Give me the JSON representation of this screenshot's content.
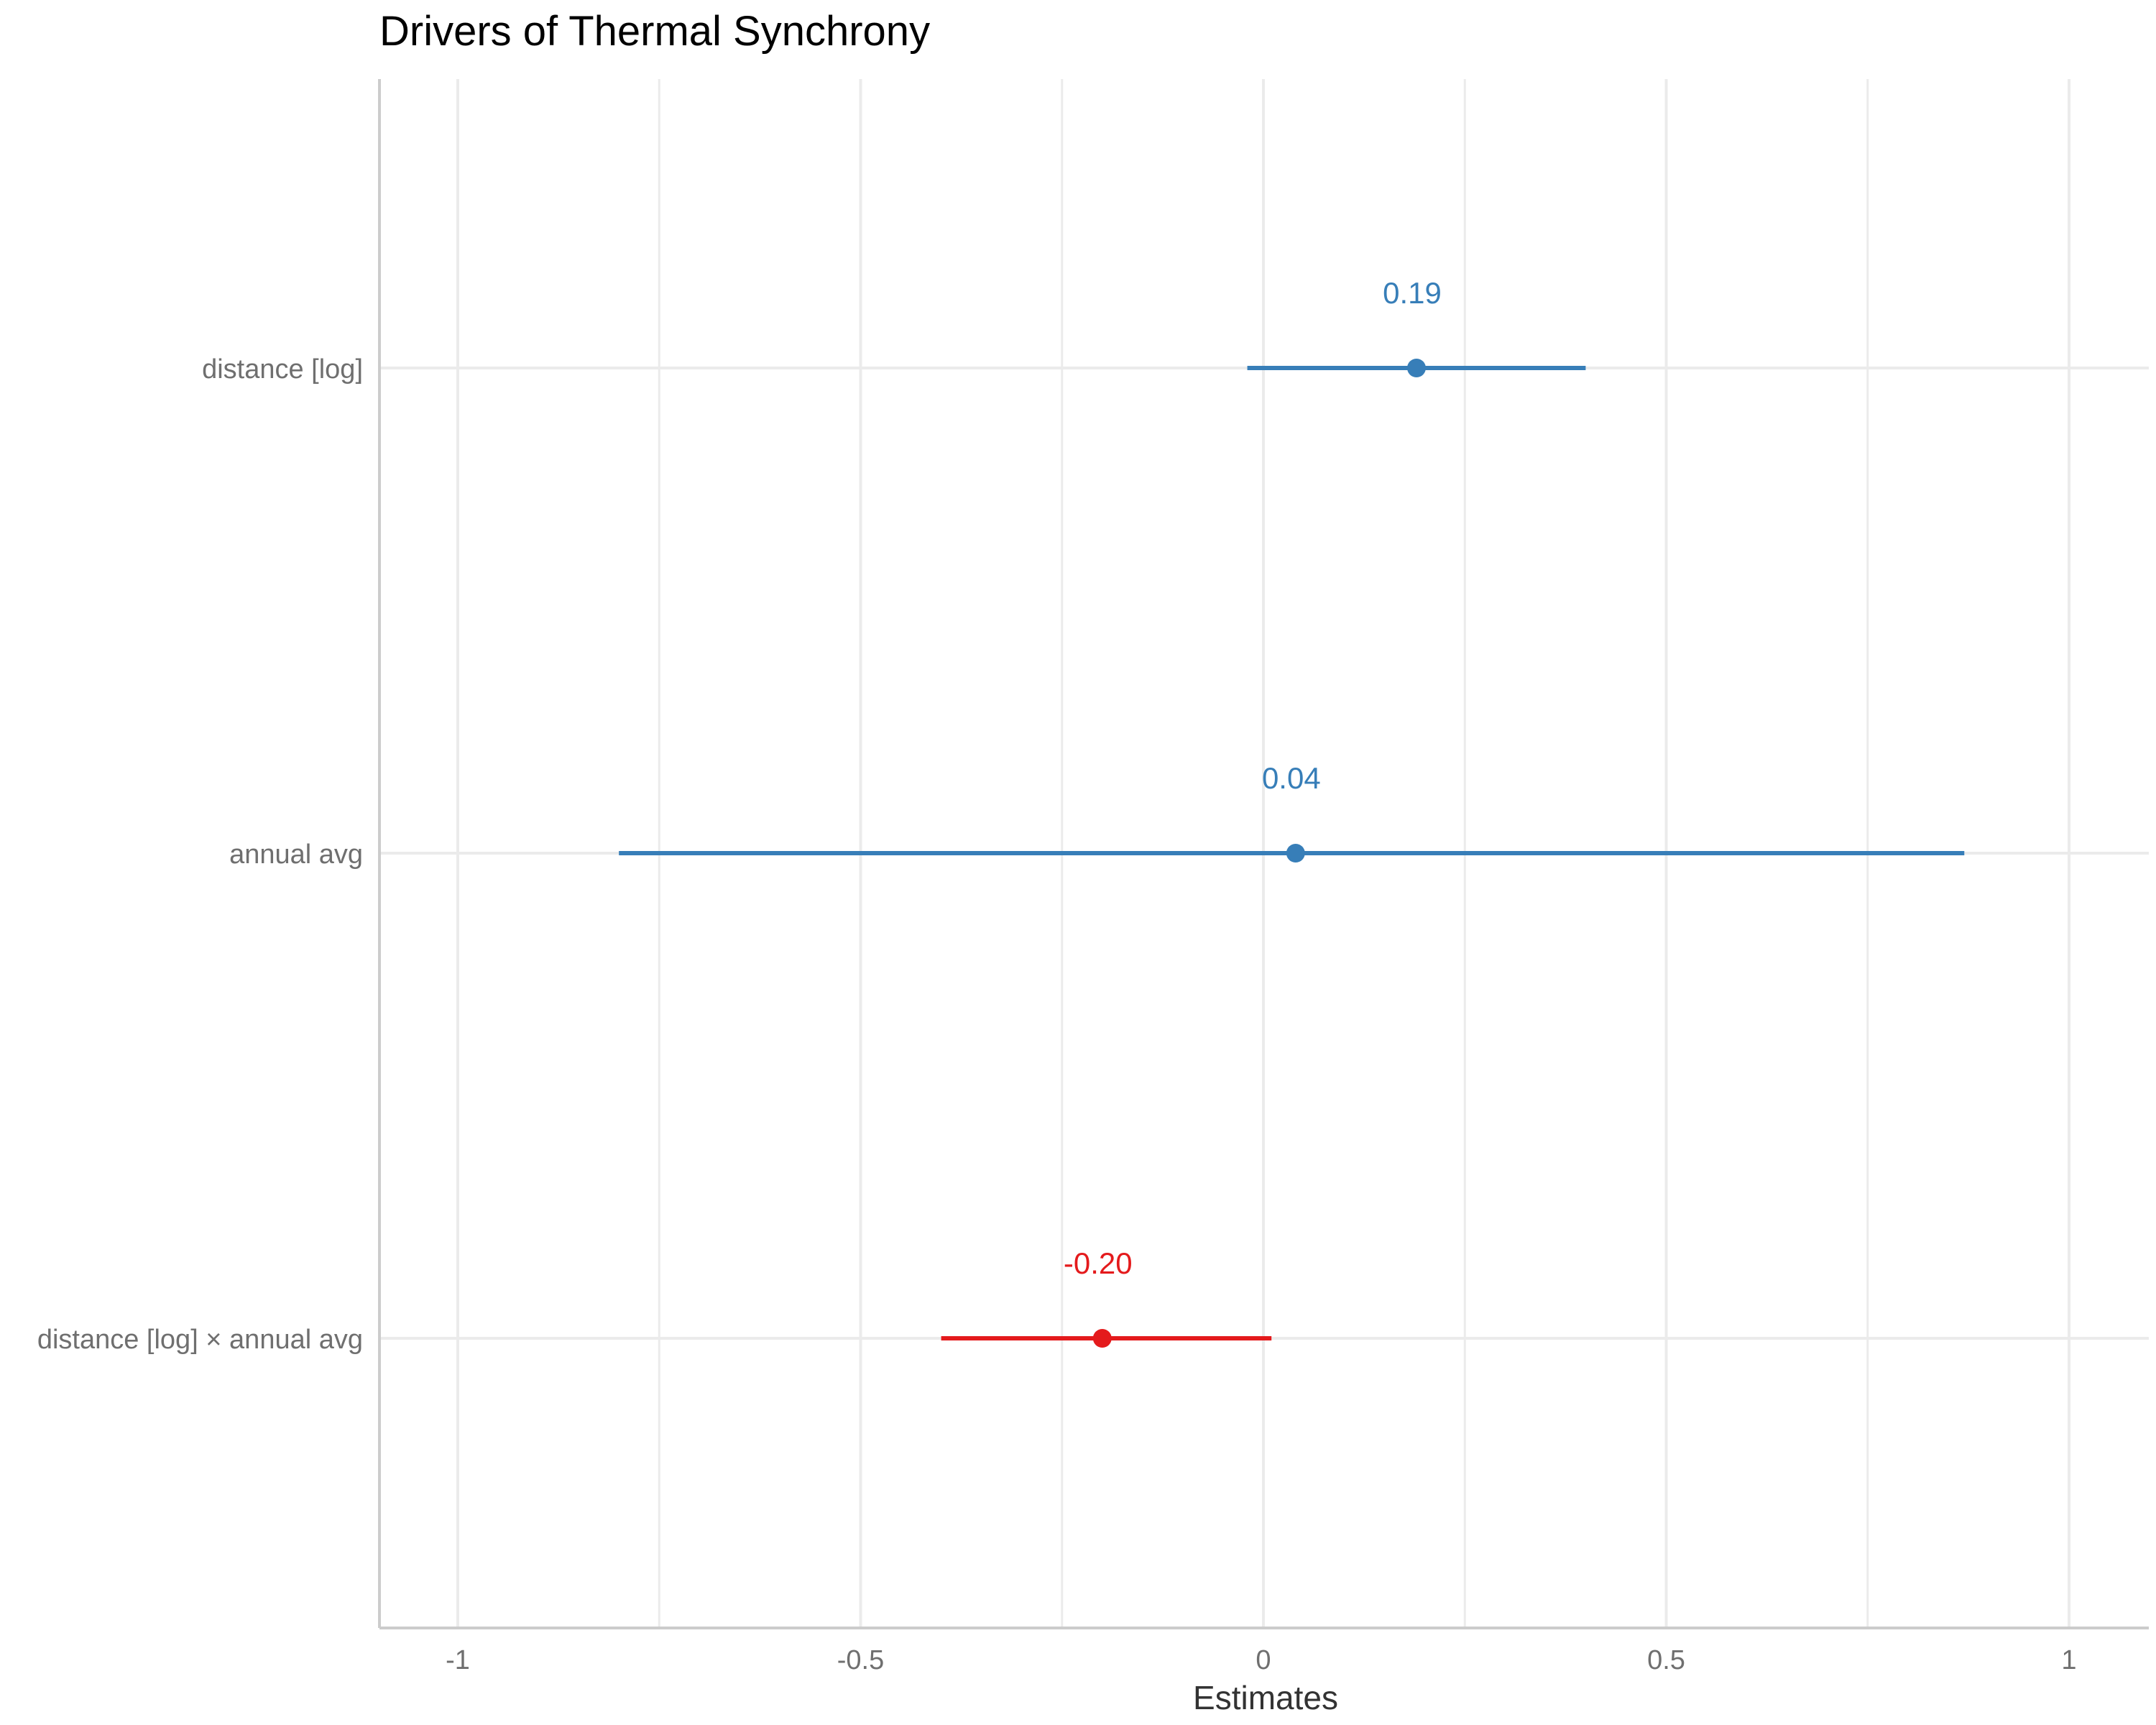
{
  "chart_data": {
    "type": "forest",
    "title": "Drivers of Thermal Synchrony",
    "xlabel": "Estimates",
    "ylabel": "",
    "xlim": [
      -1.1,
      1.1
    ],
    "x_ticks": [
      {
        "value": -1,
        "label": "-1"
      },
      {
        "value": -0.5,
        "label": "-0.5"
      },
      {
        "value": 0,
        "label": "0"
      },
      {
        "value": 0.5,
        "label": "0.5"
      },
      {
        "value": 1,
        "label": "1"
      }
    ],
    "x_minor_ticks": [
      -0.75,
      -0.25,
      0.25,
      0.75
    ],
    "grid": true,
    "terms": [
      {
        "label": "distance [log]",
        "estimate": 0.19,
        "ci_low": -0.02,
        "ci_high": 0.4,
        "value_label": "0.19",
        "color": "#377eb8"
      },
      {
        "label": "annual avg",
        "estimate": 0.04,
        "ci_low": -0.8,
        "ci_high": 0.87,
        "value_label": "0.04",
        "color": "#377eb8"
      },
      {
        "label": "distance [log] × annual avg",
        "estimate": -0.2,
        "ci_low": -0.4,
        "ci_high": 0.01,
        "value_label": "-0.20",
        "color": "#e41a1c"
      }
    ],
    "colors": {
      "positive": "#377eb8",
      "negative": "#e41a1c",
      "grid": "#ebebeb",
      "axis": "#cccccc"
    }
  }
}
